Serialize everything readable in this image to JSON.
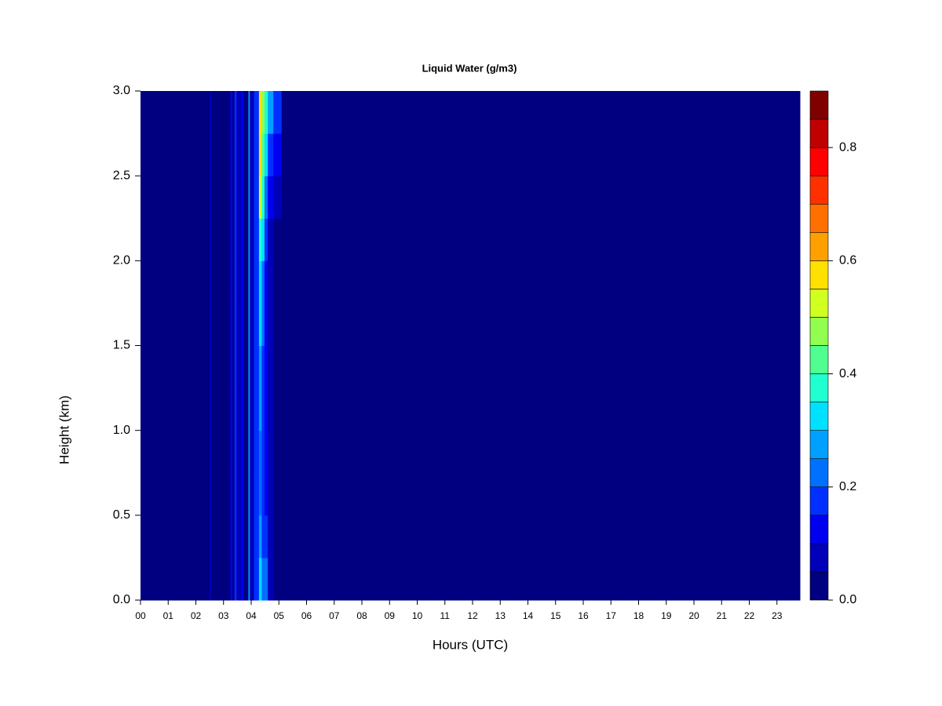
{
  "chart_data": {
    "type": "heatmap",
    "title": "Liquid Water (g/m3)",
    "xlabel": "Hours (UTC)",
    "ylabel": "Height (km)",
    "x": [
      0,
      2.5,
      2.56,
      3.25,
      3.32,
      3.4,
      3.47,
      3.65,
      3.72,
      3.9,
      3.95,
      4.1,
      4.28,
      4.38,
      4.48,
      4.6,
      4.8,
      5.1
    ],
    "y": [
      0,
      0.25,
      0.5,
      0.75,
      1,
      1.25,
      1.5,
      1.75,
      2,
      2.25,
      2.5,
      2.75
    ],
    "z": [
      [
        0,
        0,
        0,
        0,
        0,
        0,
        0,
        0,
        0,
        0,
        0,
        0
      ],
      [
        0.07,
        0.07,
        0.07,
        0.07,
        0.07,
        0.07,
        0.07,
        0.07,
        0.07,
        0.07,
        0.07,
        0.07
      ],
      [
        0,
        0,
        0,
        0,
        0,
        0,
        0,
        0,
        0,
        0,
        0,
        0
      ],
      [
        0.1,
        0.1,
        0.1,
        0.1,
        0.1,
        0.1,
        0.1,
        0.1,
        0.1,
        0.1,
        0.1,
        0.1
      ],
      [
        0.02,
        0.02,
        0.02,
        0.02,
        0.02,
        0.02,
        0.02,
        0.02,
        0.02,
        0.02,
        0.02,
        0.02
      ],
      [
        0.15,
        0.15,
        0.15,
        0.15,
        0.15,
        0.15,
        0.15,
        0.15,
        0.15,
        0.15,
        0.15,
        0.15
      ],
      [
        0.05,
        0.05,
        0.05,
        0.05,
        0.05,
        0.05,
        0.05,
        0.05,
        0.05,
        0.05,
        0.05,
        0.05
      ],
      [
        0.12,
        0.12,
        0.12,
        0.12,
        0.12,
        0.12,
        0.12,
        0.12,
        0.12,
        0.12,
        0.12,
        0.12
      ],
      [
        0.03,
        0.03,
        0.03,
        0.03,
        0.03,
        0.03,
        0.03,
        0.03,
        0.03,
        0.03,
        0.03,
        0.03
      ],
      [
        0.25,
        0.25,
        0.25,
        0.25,
        0.25,
        0.25,
        0.25,
        0.25,
        0.25,
        0.25,
        0.25,
        0.25
      ],
      [
        0.08,
        0.08,
        0.08,
        0.08,
        0.08,
        0.08,
        0.08,
        0.08,
        0.08,
        0.08,
        0.08,
        0.08
      ],
      [
        0.15,
        0.15,
        0.15,
        0.15,
        0.15,
        0.15,
        0.15,
        0.15,
        0.15,
        0.15,
        0.15,
        0.15
      ],
      [
        0.3,
        0.25,
        0.2,
        0.2,
        0.25,
        0.25,
        0.3,
        0.3,
        0.35,
        0.5,
        0.55,
        0.55
      ],
      [
        0.2,
        0.15,
        0.15,
        0.15,
        0.15,
        0.15,
        0.2,
        0.2,
        0.3,
        0.35,
        0.4,
        0.45
      ],
      [
        0.2,
        0.15,
        0.1,
        0.1,
        0.1,
        0.1,
        0.1,
        0.1,
        0.15,
        0.2,
        0.3,
        0.35
      ],
      [
        0.05,
        0.05,
        0.05,
        0.05,
        0.05,
        0.05,
        0.05,
        0.05,
        0.05,
        0.1,
        0.15,
        0.25
      ],
      [
        0,
        0,
        0,
        0,
        0,
        0,
        0,
        0,
        0,
        0.05,
        0.1,
        0.15
      ],
      [
        0,
        0,
        0,
        0,
        0,
        0,
        0,
        0,
        0,
        0,
        0,
        0
      ]
    ],
    "xlim": [
      0,
      23.83
    ],
    "ylim": [
      0,
      3
    ],
    "xticks": [
      {
        "value": 0,
        "label": "00"
      },
      {
        "value": 1,
        "label": "01"
      },
      {
        "value": 2,
        "label": "02"
      },
      {
        "value": 3,
        "label": "03"
      },
      {
        "value": 4,
        "label": "04"
      },
      {
        "value": 5,
        "label": "05"
      },
      {
        "value": 6,
        "label": "06"
      },
      {
        "value": 7,
        "label": "07"
      },
      {
        "value": 8,
        "label": "08"
      },
      {
        "value": 9,
        "label": "09"
      },
      10,
      11,
      12,
      13,
      14,
      15,
      16,
      17,
      18,
      19,
      20,
      21,
      22,
      23
    ],
    "yticks": [
      {
        "value": 0,
        "label": "0.0"
      },
      0.5,
      {
        "value": 1,
        "label": "1.0"
      },
      1.5,
      {
        "value": 2,
        "label": "2.0"
      },
      2.5,
      {
        "value": 3,
        "label": "3.0"
      }
    ],
    "colorbar_levels": [
      0,
      0.05,
      0.1,
      0.15,
      0.2,
      0.25,
      0.3,
      0.35,
      0.4,
      0.45,
      0.5,
      0.55,
      0.6,
      0.65,
      0.7,
      0.75,
      0.8,
      0.85,
      0.9
    ],
    "colorbar_colors": [
      "#000080",
      "#0000b8",
      "#0000f0",
      "#0030ff",
      "#0070ff",
      "#00a0ff",
      "#00e0ff",
      "#20ffd0",
      "#50ff90",
      "#90ff50",
      "#d0ff20",
      "#ffe000",
      "#ffa000",
      "#ff7000",
      "#ff3000",
      "#ff0000",
      "#c00000",
      "#800000"
    ],
    "colorbar_ticks": [
      {
        "value": 0,
        "label": "0.0"
      },
      0.2,
      0.4,
      0.6,
      0.8
    ]
  }
}
